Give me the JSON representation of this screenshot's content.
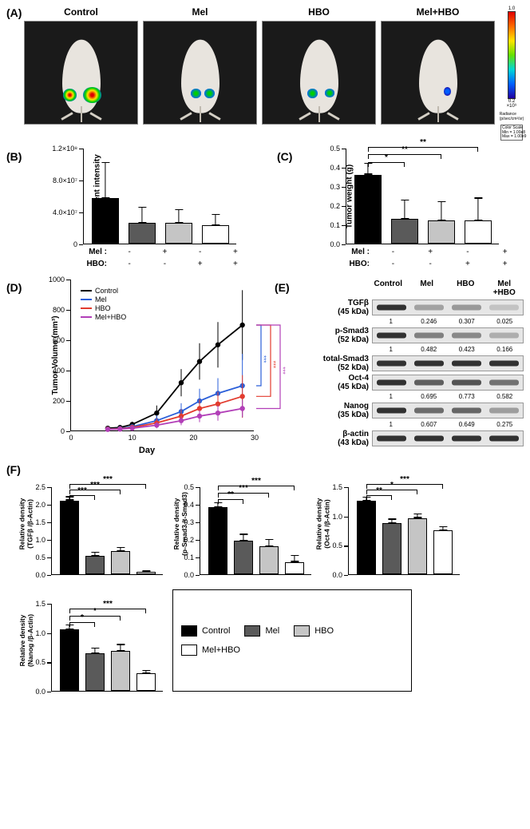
{
  "panels": {
    "A": "(A)",
    "B": "(B)",
    "C": "(C)",
    "D": "(D)",
    "E": "(E)",
    "F": "(F)"
  },
  "groups": {
    "control": "Control",
    "mel": "Mel",
    "hbo": "HBO",
    "melhbo": "Mel+HBO"
  },
  "colors": {
    "control": "#000000",
    "mel": "#5a5a5a",
    "hbo": "#c5c5c5",
    "melhbo": "#ffffff",
    "line_control": "#000000",
    "line_mel": "#2b5fd9",
    "line_hbo": "#e23b2e",
    "line_melhbo": "#b23fb8"
  },
  "panelA": {
    "colorbar_top": "1.0",
    "colorbar_exp": "×10⁹",
    "colorbar_bot": "0.2",
    "radiance": "Radiance\n(p/sec/cm²/sr)",
    "cal": "Color Scale\nMin = 1.00e8\nMax = 1.00e9",
    "signals": {
      "control": [
        {
          "l": 34,
          "t": 66,
          "w": 12,
          "h": 12,
          "bg": "radial-gradient(circle,#e00000 10%,#ffe400 35%,#00d000 55%,#0060ff 80%)"
        },
        {
          "l": 52,
          "t": 64,
          "w": 16,
          "h": 16,
          "bg": "radial-gradient(circle,#e00000 12%,#ffe400 38%,#00d000 58%,#0060ff 82%)"
        }
      ],
      "mel": [
        {
          "l": 42,
          "t": 66,
          "w": 9,
          "h": 9,
          "bg": "radial-gradient(circle,#00d000 20%,#0060ff 75%)"
        },
        {
          "l": 54,
          "t": 66,
          "w": 9,
          "h": 9,
          "bg": "radial-gradient(circle,#00d000 20%,#0060ff 75%)"
        }
      ],
      "hbo": [
        {
          "l": 40,
          "t": 66,
          "w": 9,
          "h": 9,
          "bg": "radial-gradient(circle,#00d000 20%,#0060ff 75%)"
        },
        {
          "l": 55,
          "t": 66,
          "w": 9,
          "h": 8,
          "bg": "radial-gradient(circle,#00d000 20%,#0060ff 75%)"
        }
      ],
      "melhbo": [
        {
          "l": 55,
          "t": 64,
          "w": 7,
          "h": 9,
          "bg": "radial-gradient(circle,#0060ff 30%,#2000a0 85%)"
        }
      ]
    }
  },
  "panelB": {
    "ylab": "Luminescent intensity",
    "ymax": 120000000,
    "yticks": [
      0,
      40000000,
      80000000,
      120000000
    ],
    "ytick_labels": [
      "0",
      "4.0×10⁷",
      "8.0×10⁷",
      "1.2×10⁸"
    ],
    "bars": [
      {
        "g": "control",
        "v": 57000000,
        "e": 45000000
      },
      {
        "g": "mel",
        "v": 26000000,
        "e": 20000000
      },
      {
        "g": "hbo",
        "v": 26000000,
        "e": 17000000
      },
      {
        "g": "melhbo",
        "v": 23000000,
        "e": 14000000
      }
    ],
    "x": {
      "mel": [
        "-",
        "+",
        "-",
        "+"
      ],
      "hbo": [
        "-",
        "-",
        "+",
        "+"
      ],
      "lab_mel": "Mel :",
      "lab_hbo": "HBO:"
    }
  },
  "panelC": {
    "ylab": "Tumor weight (g)",
    "ymax": 0.5,
    "yticks": [
      0,
      0.1,
      0.2,
      0.3,
      0.4,
      0.5
    ],
    "ytick_labels": [
      "0.0",
      "0.1",
      "0.2",
      "0.3",
      "0.4",
      "0.5"
    ],
    "bars": [
      {
        "g": "control",
        "v": 0.36,
        "e": 0.06
      },
      {
        "g": "mel",
        "v": 0.13,
        "e": 0.1
      },
      {
        "g": "hbo",
        "v": 0.12,
        "e": 0.1
      },
      {
        "g": "melhbo",
        "v": 0.12,
        "e": 0.12
      }
    ],
    "sig": [
      {
        "from": 0,
        "to": 1,
        "lab": "*",
        "y": 0.43
      },
      {
        "from": 0,
        "to": 2,
        "lab": "**",
        "y": 0.47
      },
      {
        "from": 0,
        "to": 3,
        "lab": "**",
        "y": 0.51
      }
    ],
    "x": {
      "mel": [
        "-",
        "+",
        "-",
        "+"
      ],
      "hbo": [
        "-",
        "-",
        "+",
        "+"
      ],
      "lab_mel": "Mel :",
      "lab_hbo": "HBO:"
    }
  },
  "panelD": {
    "ylab": "Tumor Volume (mm³)",
    "xlab": "Day",
    "ymax": 1000,
    "yticks": [
      0,
      200,
      400,
      600,
      800,
      1000
    ],
    "xmax": 30,
    "xticks": [
      0,
      10,
      20,
      30
    ],
    "series": {
      "control": {
        "pts": [
          [
            6,
            20
          ],
          [
            8,
            25
          ],
          [
            10,
            45
          ],
          [
            14,
            120
          ],
          [
            18,
            320
          ],
          [
            21,
            460
          ],
          [
            24,
            570
          ],
          [
            28,
            700
          ]
        ],
        "err": [
          10,
          12,
          18,
          50,
          90,
          120,
          150,
          230
        ]
      },
      "mel": {
        "pts": [
          [
            6,
            15
          ],
          [
            8,
            18
          ],
          [
            10,
            30
          ],
          [
            14,
            70
          ],
          [
            18,
            130
          ],
          [
            21,
            200
          ],
          [
            24,
            250
          ],
          [
            28,
            300
          ]
        ],
        "err": [
          8,
          10,
          15,
          35,
          55,
          80,
          100,
          210
        ]
      },
      "hbo": {
        "pts": [
          [
            6,
            14
          ],
          [
            8,
            16
          ],
          [
            10,
            25
          ],
          [
            14,
            55
          ],
          [
            18,
            100
          ],
          [
            21,
            150
          ],
          [
            24,
            180
          ],
          [
            28,
            230
          ]
        ],
        "err": [
          8,
          10,
          14,
          30,
          45,
          60,
          80,
          140
        ]
      },
      "melhbo": {
        "pts": [
          [
            6,
            12
          ],
          [
            8,
            14
          ],
          [
            10,
            20
          ],
          [
            14,
            40
          ],
          [
            18,
            70
          ],
          [
            21,
            100
          ],
          [
            24,
            120
          ],
          [
            28,
            150
          ]
        ],
        "err": [
          6,
          8,
          10,
          20,
          30,
          40,
          50,
          55
        ]
      }
    },
    "sig": [
      {
        "lab": "***",
        "col": "#2b5fd9"
      },
      {
        "lab": "***",
        "col": "#e23b2e"
      },
      {
        "lab": "***",
        "col": "#b23fb8"
      }
    ]
  },
  "panelE": {
    "head": [
      "Control",
      "Mel",
      "HBO",
      "Mel\n+HBO"
    ],
    "rows": [
      {
        "lab": "TGFβ\n(45 kDa)",
        "i": [
          1.0,
          0.25,
          0.31,
          0.03
        ],
        "vals": [
          "1",
          "0.246",
          "0.307",
          "0.025"
        ]
      },
      {
        "lab": "p-Smad3\n(52 kDa)",
        "i": [
          1.0,
          0.48,
          0.42,
          0.17
        ],
        "vals": [
          "1",
          "0.482",
          "0.423",
          "0.166"
        ]
      },
      {
        "lab": "total-Smad3\n(52 kDa)",
        "i": [
          1.0,
          1.0,
          1.0,
          1.0
        ],
        "vals": null
      },
      {
        "lab": "Oct-4\n(45 kDa)",
        "i": [
          1.0,
          0.7,
          0.77,
          0.58
        ],
        "vals": [
          "1",
          "0.695",
          "0.773",
          "0.582"
        ]
      },
      {
        "lab": "Nanog\n(35 kDa)",
        "i": [
          1.0,
          0.61,
          0.65,
          0.28
        ],
        "vals": [
          "1",
          "0.607",
          "0.649",
          "0.275"
        ]
      },
      {
        "lab": "β-actin\n(43 kDa)",
        "i": [
          1.0,
          1.0,
          1.0,
          1.0
        ],
        "vals": null
      }
    ]
  },
  "panelF": {
    "charts": [
      {
        "ylab": "Relative density\n(TGFβ /β-Actin)",
        "ymax": 2.5,
        "yt": [
          0,
          0.5,
          1.0,
          1.5,
          2.0,
          2.5
        ],
        "bars": [
          {
            "g": "control",
            "v": 2.1,
            "e": 0.12
          },
          {
            "g": "mel",
            "v": 0.52,
            "e": 0.12
          },
          {
            "g": "hbo",
            "v": 0.65,
            "e": 0.13
          },
          {
            "g": "melhbo",
            "v": 0.06,
            "e": 0.05
          }
        ],
        "sig": [
          {
            "f": 0,
            "t": 1,
            "l": "***",
            "y": 2.28
          },
          {
            "f": 0,
            "t": 2,
            "l": "***",
            "y": 2.44
          },
          {
            "f": 0,
            "t": 3,
            "l": "***",
            "y": 2.6
          }
        ]
      },
      {
        "ylab": "Relative density\n(p-Smad3 /t-Smad3)",
        "ymax": 0.5,
        "yt": [
          0,
          0.1,
          0.2,
          0.3,
          0.4,
          0.5
        ],
        "bars": [
          {
            "g": "control",
            "v": 0.38,
            "e": 0.03
          },
          {
            "g": "mel",
            "v": 0.19,
            "e": 0.04
          },
          {
            "g": "hbo",
            "v": 0.16,
            "e": 0.04
          },
          {
            "g": "melhbo",
            "v": 0.07,
            "e": 0.04
          }
        ],
        "sig": [
          {
            "f": 0,
            "t": 1,
            "l": "**",
            "y": 0.43
          },
          {
            "f": 0,
            "t": 2,
            "l": "***",
            "y": 0.47
          },
          {
            "f": 0,
            "t": 3,
            "l": "***",
            "y": 0.51
          }
        ]
      },
      {
        "ylab": "Relative density\n(Oct-4 /β-Actin)",
        "ymax": 1.5,
        "yt": [
          0,
          0.5,
          1.0,
          1.5
        ],
        "bars": [
          {
            "g": "control",
            "v": 1.25,
            "e": 0.07
          },
          {
            "g": "mel",
            "v": 0.87,
            "e": 0.08
          },
          {
            "g": "hbo",
            "v": 0.96,
            "e": 0.08
          },
          {
            "g": "melhbo",
            "v": 0.75,
            "e": 0.07
          }
        ],
        "sig": [
          {
            "f": 0,
            "t": 1,
            "l": "**",
            "y": 1.36
          },
          {
            "f": 0,
            "t": 2,
            "l": "*",
            "y": 1.46
          },
          {
            "f": 0,
            "t": 3,
            "l": "***",
            "y": 1.56
          }
        ]
      },
      {
        "ylab": "Relative density\n(Nanog /β-Actin)",
        "ymax": 1.5,
        "yt": [
          0,
          0.5,
          1.0,
          1.5
        ],
        "bars": [
          {
            "g": "control",
            "v": 1.05,
            "e": 0.08
          },
          {
            "g": "mel",
            "v": 0.64,
            "e": 0.1
          },
          {
            "g": "hbo",
            "v": 0.68,
            "e": 0.12
          },
          {
            "g": "melhbo",
            "v": 0.3,
            "e": 0.06
          }
        ],
        "sig": [
          {
            "f": 0,
            "t": 1,
            "l": "*",
            "y": 1.18
          },
          {
            "f": 0,
            "t": 2,
            "l": "*",
            "y": 1.3
          },
          {
            "f": 0,
            "t": 3,
            "l": "***",
            "y": 1.42
          }
        ]
      }
    ]
  }
}
